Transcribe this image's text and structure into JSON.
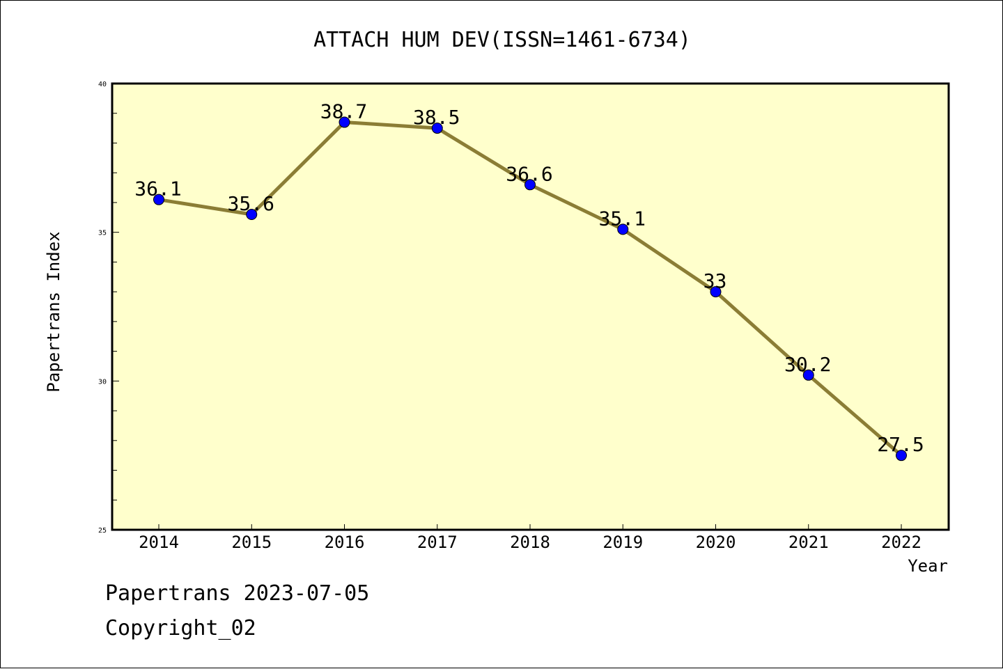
{
  "chart_data": {
    "type": "line",
    "title": "ATTACH HUM DEV(ISSN=1461-6734)",
    "xlabel": "Year",
    "ylabel": "Papertrans Index",
    "categories": [
      "2014",
      "2015",
      "2016",
      "2017",
      "2018",
      "2019",
      "2020",
      "2021",
      "2022"
    ],
    "values": [
      36.1,
      35.6,
      38.7,
      38.5,
      36.6,
      35.1,
      33,
      30.2,
      27.5
    ],
    "data_labels": [
      "36.1",
      "35.6",
      "38.7",
      "38.5",
      "36.6",
      "35.1",
      "33",
      "30.2",
      "27.5"
    ],
    "ylim": [
      25,
      40
    ],
    "yticks": [
      "25",
      "30",
      "35",
      "40"
    ],
    "grid": false,
    "colors": {
      "plot_bg": "#ffffcc",
      "line": "#8b7d35",
      "marker": "#0000ff"
    }
  },
  "footer": {
    "date_line": "Papertrans 2023-07-05",
    "copyright": "Copyright_02"
  }
}
